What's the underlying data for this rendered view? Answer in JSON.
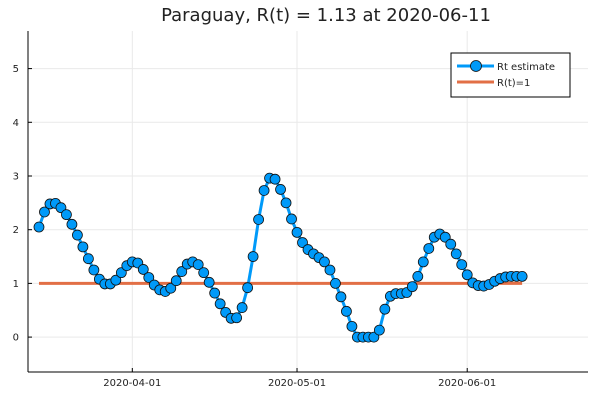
{
  "chart_data": {
    "type": "line",
    "title": "Paraguay, R(t) = 1.13 at 2020-06-11",
    "xlabel": "",
    "ylabel": "",
    "x_ticks": [
      "2020-04-01",
      "2020-05-01",
      "2020-06-01"
    ],
    "y_ticks": [
      "0",
      "1",
      "2",
      "3",
      "4",
      "5"
    ],
    "xlim": [
      "2020-03-13",
      "2020-06-23"
    ],
    "ylim": [
      -0.65,
      5.7
    ],
    "grid": true,
    "legend_position": "top-right",
    "series": [
      {
        "name": "Rt estimate",
        "color": "#009AF9",
        "marker": "circle",
        "x": [
          "2020-03-15",
          "2020-03-16",
          "2020-03-17",
          "2020-03-18",
          "2020-03-19",
          "2020-03-20",
          "2020-03-21",
          "2020-03-22",
          "2020-03-23",
          "2020-03-24",
          "2020-03-25",
          "2020-03-26",
          "2020-03-27",
          "2020-03-28",
          "2020-03-29",
          "2020-03-30",
          "2020-03-31",
          "2020-04-01",
          "2020-04-02",
          "2020-04-03",
          "2020-04-04",
          "2020-04-05",
          "2020-04-06",
          "2020-04-07",
          "2020-04-08",
          "2020-04-09",
          "2020-04-10",
          "2020-04-11",
          "2020-04-12",
          "2020-04-13",
          "2020-04-14",
          "2020-04-15",
          "2020-04-16",
          "2020-04-17",
          "2020-04-18",
          "2020-04-19",
          "2020-04-20",
          "2020-04-21",
          "2020-04-22",
          "2020-04-23",
          "2020-04-24",
          "2020-04-25",
          "2020-04-26",
          "2020-04-27",
          "2020-04-28",
          "2020-04-29",
          "2020-04-30",
          "2020-05-01",
          "2020-05-02",
          "2020-05-03",
          "2020-05-04",
          "2020-05-05",
          "2020-05-06",
          "2020-05-07",
          "2020-05-08",
          "2020-05-09",
          "2020-05-10",
          "2020-05-11",
          "2020-05-12",
          "2020-05-13",
          "2020-05-14",
          "2020-05-15",
          "2020-05-16",
          "2020-05-17",
          "2020-05-18",
          "2020-05-19",
          "2020-05-20",
          "2020-05-21",
          "2020-05-22",
          "2020-05-23",
          "2020-05-24",
          "2020-05-25",
          "2020-05-26",
          "2020-05-27",
          "2020-05-28",
          "2020-05-29",
          "2020-05-30",
          "2020-05-31",
          "2020-06-01",
          "2020-06-02",
          "2020-06-03",
          "2020-06-04",
          "2020-06-05",
          "2020-06-06",
          "2020-06-07",
          "2020-06-08",
          "2020-06-09",
          "2020-06-10",
          "2020-06-11"
        ],
        "y": [
          2.05,
          2.33,
          2.48,
          2.49,
          2.41,
          2.28,
          2.1,
          1.9,
          1.68,
          1.46,
          1.25,
          1.08,
          0.99,
          0.99,
          1.06,
          1.2,
          1.33,
          1.4,
          1.38,
          1.26,
          1.11,
          0.97,
          0.88,
          0.85,
          0.91,
          1.05,
          1.22,
          1.36,
          1.4,
          1.35,
          1.2,
          1.02,
          0.82,
          0.62,
          0.46,
          0.35,
          0.36,
          0.55,
          0.92,
          1.5,
          2.19,
          2.73,
          2.96,
          2.94,
          2.75,
          2.5,
          2.2,
          1.95,
          1.76,
          1.63,
          1.55,
          1.48,
          1.4,
          1.25,
          1.0,
          0.75,
          0.48,
          0.2,
          0.0,
          0.0,
          0.0,
          0.0,
          0.13,
          0.52,
          0.76,
          0.81,
          0.81,
          0.83,
          0.94,
          1.13,
          1.4,
          1.65,
          1.86,
          1.92,
          1.86,
          1.73,
          1.55,
          1.35,
          1.16,
          1.01,
          0.96,
          0.95,
          0.98,
          1.04,
          1.09,
          1.12,
          1.13,
          1.13,
          1.13
        ]
      },
      {
        "name": "R(t)=1",
        "color": "#E26F46",
        "marker": "none",
        "x": [
          "2020-03-15",
          "2020-06-11"
        ],
        "y": [
          1,
          1
        ]
      }
    ]
  }
}
